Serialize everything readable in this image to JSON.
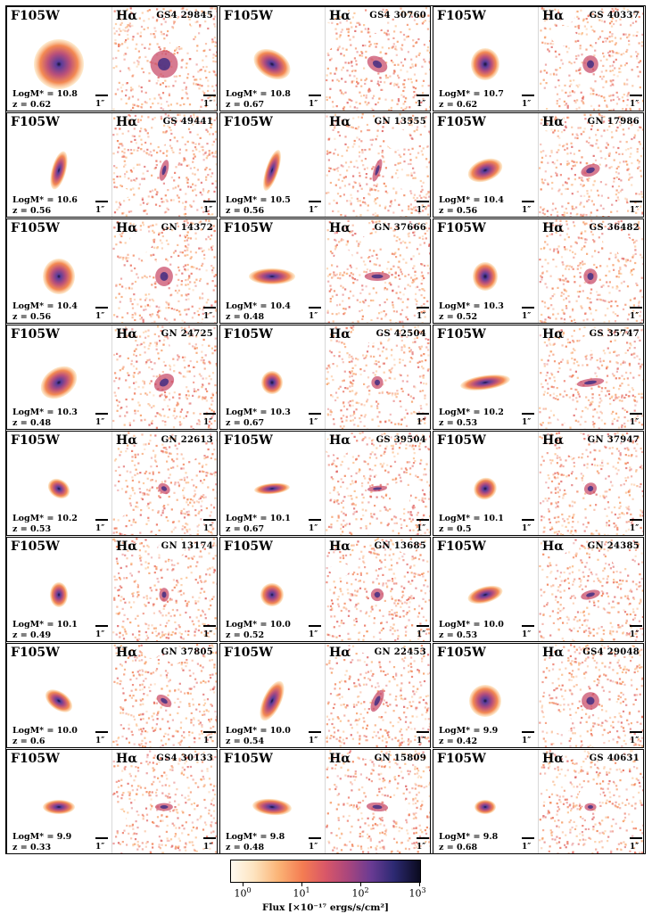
{
  "figure": {
    "panels": [
      {
        "filter": "F105W",
        "line": "Hα",
        "galaxy_id": "GS4 29845",
        "mass_label": "LogM* = 10.8",
        "z_label": "z = 0.62",
        "scale": "1″",
        "scale2": "1″"
      },
      {
        "filter": "F105W",
        "line": "Hα",
        "galaxy_id": "GS4 30760",
        "mass_label": "LogM* = 10.8",
        "z_label": "z = 0.67",
        "scale": "1″",
        "scale2": "1″"
      },
      {
        "filter": "F105W",
        "line": "Hα",
        "galaxy_id": "GS 40337",
        "mass_label": "LogM* = 10.7",
        "z_label": "z = 0.62",
        "scale": "1″",
        "scale2": "1″"
      },
      {
        "filter": "F105W",
        "line": "Hα",
        "galaxy_id": "GS 49441",
        "mass_label": "LogM* = 10.6",
        "z_label": "z = 0.56",
        "scale": "1″",
        "scale2": "1″"
      },
      {
        "filter": "F105W",
        "line": "Hα",
        "galaxy_id": "GN 13555",
        "mass_label": "LogM* = 10.5",
        "z_label": "z = 0.56",
        "scale": "1″",
        "scale2": "1″"
      },
      {
        "filter": "F105W",
        "line": "Hα",
        "galaxy_id": "GN 17986",
        "mass_label": "LogM* = 10.4",
        "z_label": "z = 0.56",
        "scale": "1″",
        "scale2": "1″"
      },
      {
        "filter": "F105W",
        "line": "Hα",
        "galaxy_id": "GN 14372",
        "mass_label": "LogM* = 10.4",
        "z_label": "z = 0.56",
        "scale": "1″",
        "scale2": "1″"
      },
      {
        "filter": "F105W",
        "line": "Hα",
        "galaxy_id": "GN 37666",
        "mass_label": "LogM* = 10.4",
        "z_label": "z = 0.48",
        "scale": "1″",
        "scale2": "1″"
      },
      {
        "filter": "F105W",
        "line": "Hα",
        "galaxy_id": "GS 36482",
        "mass_label": "LogM* = 10.3",
        "z_label": "z = 0.52",
        "scale": "1″",
        "scale2": "1″"
      },
      {
        "filter": "F105W",
        "line": "Hα",
        "galaxy_id": "GN 24725",
        "mass_label": "LogM* = 10.3",
        "z_label": "z = 0.48",
        "scale": "1″",
        "scale2": "1″"
      },
      {
        "filter": "F105W",
        "line": "Hα",
        "galaxy_id": "GS 42504",
        "mass_label": "LogM* = 10.3",
        "z_label": "z = 0.67",
        "scale": "1″",
        "scale2": "1″"
      },
      {
        "filter": "F105W",
        "line": "Hα",
        "galaxy_id": "GS 35747",
        "mass_label": "LogM* = 10.2",
        "z_label": "z = 0.53",
        "scale": "1″",
        "scale2": "1″"
      },
      {
        "filter": "F105W",
        "line": "Hα",
        "galaxy_id": "GN 22613",
        "mass_label": "LogM* = 10.2",
        "z_label": "z = 0.53",
        "scale": "1″",
        "scale2": "1″"
      },
      {
        "filter": "F105W",
        "line": "Hα",
        "galaxy_id": "GS 39504",
        "mass_label": "LogM* = 10.1",
        "z_label": "z = 0.67",
        "scale": "1″",
        "scale2": "1″"
      },
      {
        "filter": "F105W",
        "line": "Hα",
        "galaxy_id": "GN 37947",
        "mass_label": "LogM* = 10.1",
        "z_label": "z = 0.5",
        "scale": "1″",
        "scale2": "1″"
      },
      {
        "filter": "F105W",
        "line": "Hα",
        "galaxy_id": "GN 13174",
        "mass_label": "LogM* = 10.1",
        "z_label": "z = 0.49",
        "scale": "1″",
        "scale2": "1″"
      },
      {
        "filter": "F105W",
        "line": "Hα",
        "galaxy_id": "GN 13685",
        "mass_label": "LogM* = 10.0",
        "z_label": "z = 0.52",
        "scale": "1″",
        "scale2": "1″"
      },
      {
        "filter": "F105W",
        "line": "Hα",
        "galaxy_id": "GN 24385",
        "mass_label": "LogM* = 10.0",
        "z_label": "z = 0.53",
        "scale": "1″",
        "scale2": "1″"
      },
      {
        "filter": "F105W",
        "line": "Hα",
        "galaxy_id": "GN 37805",
        "mass_label": "LogM* = 10.0",
        "z_label": "z = 0.6",
        "scale": "1″",
        "scale2": "1″"
      },
      {
        "filter": "F105W",
        "line": "Hα",
        "galaxy_id": "GN 22453",
        "mass_label": "LogM* = 10.0",
        "z_label": "z = 0.54",
        "scale": "1″",
        "scale2": "1″"
      },
      {
        "filter": "F105W",
        "line": "Hα",
        "galaxy_id": "GS4 29048",
        "mass_label": "LogM* = 9.9",
        "z_label": "z = 0.42",
        "scale": "1″",
        "scale2": "1″"
      },
      {
        "filter": "F105W",
        "line": "Hα",
        "galaxy_id": "GS4 30133",
        "mass_label": "LogM* = 9.9",
        "z_label": "z = 0.33",
        "scale": "1″",
        "scale2": "1″"
      },
      {
        "filter": "F105W",
        "line": "Hα",
        "galaxy_id": "GN 15809",
        "mass_label": "LogM* = 9.8",
        "z_label": "z = 0.48",
        "scale": "1″",
        "scale2": "1″"
      },
      {
        "filter": "F105W",
        "line": "Hα",
        "galaxy_id": "GS 40631",
        "mass_label": "LogM* = 9.8",
        "z_label": "z = 0.68",
        "scale": "1″",
        "scale2": "1″"
      }
    ],
    "colorbar": {
      "ticks": [
        {
          "base": "10",
          "exp": "0"
        },
        {
          "base": "10",
          "exp": "1"
        },
        {
          "base": "10",
          "exp": "2"
        },
        {
          "base": "10",
          "exp": "3"
        }
      ],
      "label": "Flux [×10⁻¹⁷ ergs/s/cm²]"
    }
  }
}
